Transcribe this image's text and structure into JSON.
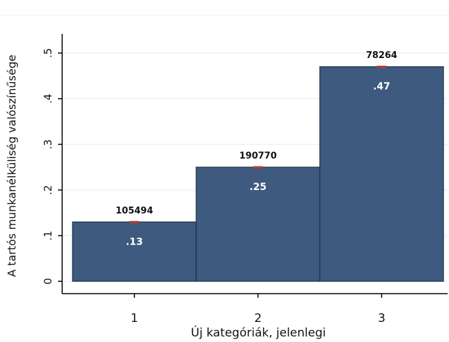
{
  "chart_data": {
    "type": "bar",
    "categories": [
      "1",
      "2",
      "3"
    ],
    "values": [
      0.13,
      0.25,
      0.47
    ],
    "value_labels": [
      ".13",
      ".25",
      ".47"
    ],
    "counts": [
      105494,
      190770,
      78264
    ],
    "color": "#3e5a7e",
    "xlabel": "Új kategóriák, jelenlegi",
    "ylabel": "A tartós munkanélküliség valószínűsége",
    "ylim": [
      -0.027,
      0.542
    ],
    "yticks": [
      0,
      {
        "value": 0.1,
        "label": ".1"
      },
      {
        "value": 0.2,
        "label": ".2"
      },
      {
        "value": 0.3,
        "label": ".3"
      },
      {
        "value": 0.4,
        "label": ".4"
      },
      {
        "value": 0.5,
        "label": ".5"
      }
    ],
    "grid": true
  }
}
